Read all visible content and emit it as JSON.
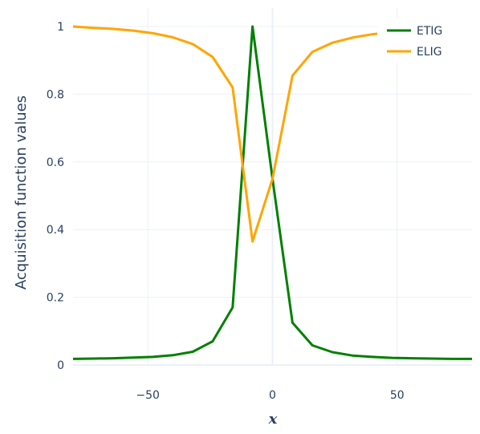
{
  "chart_data": {
    "type": "line",
    "xlabel": "x",
    "ylabel": "Acquisition function values",
    "xlim": [
      -80,
      80
    ],
    "ylim": [
      0,
      1
    ],
    "x_ticks": [
      -50,
      0,
      50
    ],
    "x_tick_labels": [
      "−50",
      "0",
      "50"
    ],
    "y_ticks": [
      0,
      0.2,
      0.4,
      0.6,
      0.8,
      1
    ],
    "y_tick_labels": [
      "0",
      "0.2",
      "0.4",
      "0.6",
      "0.8",
      "1"
    ],
    "grid": true,
    "legend_position": "top-right",
    "series": [
      {
        "name": "ETIG",
        "color": "#008000",
        "x": [
          -80,
          -72,
          -64,
          -56,
          -48,
          -40,
          -32,
          -24,
          -16,
          -8,
          0,
          8,
          16,
          24,
          32,
          40,
          48,
          56,
          64,
          72,
          80
        ],
        "y": [
          0.018,
          0.019,
          0.02,
          0.022,
          0.024,
          0.029,
          0.039,
          0.07,
          0.17,
          1.0,
          0.55,
          0.125,
          0.058,
          0.038,
          0.028,
          0.024,
          0.021,
          0.02,
          0.019,
          0.018,
          0.018
        ]
      },
      {
        "name": "ELIG",
        "color": "#FFA500",
        "x": [
          -80,
          -72,
          -64,
          -56,
          -48,
          -40,
          -32,
          -24,
          -16,
          -8,
          0,
          8,
          16,
          24,
          32,
          40,
          48,
          56,
          64,
          72,
          80
        ],
        "y": [
          1.0,
          0.996,
          0.993,
          0.988,
          0.98,
          0.968,
          0.948,
          0.91,
          0.82,
          0.365,
          0.55,
          0.855,
          0.925,
          0.952,
          0.967,
          0.977,
          0.984,
          0.989,
          0.993,
          0.996,
          0.998
        ]
      }
    ]
  }
}
